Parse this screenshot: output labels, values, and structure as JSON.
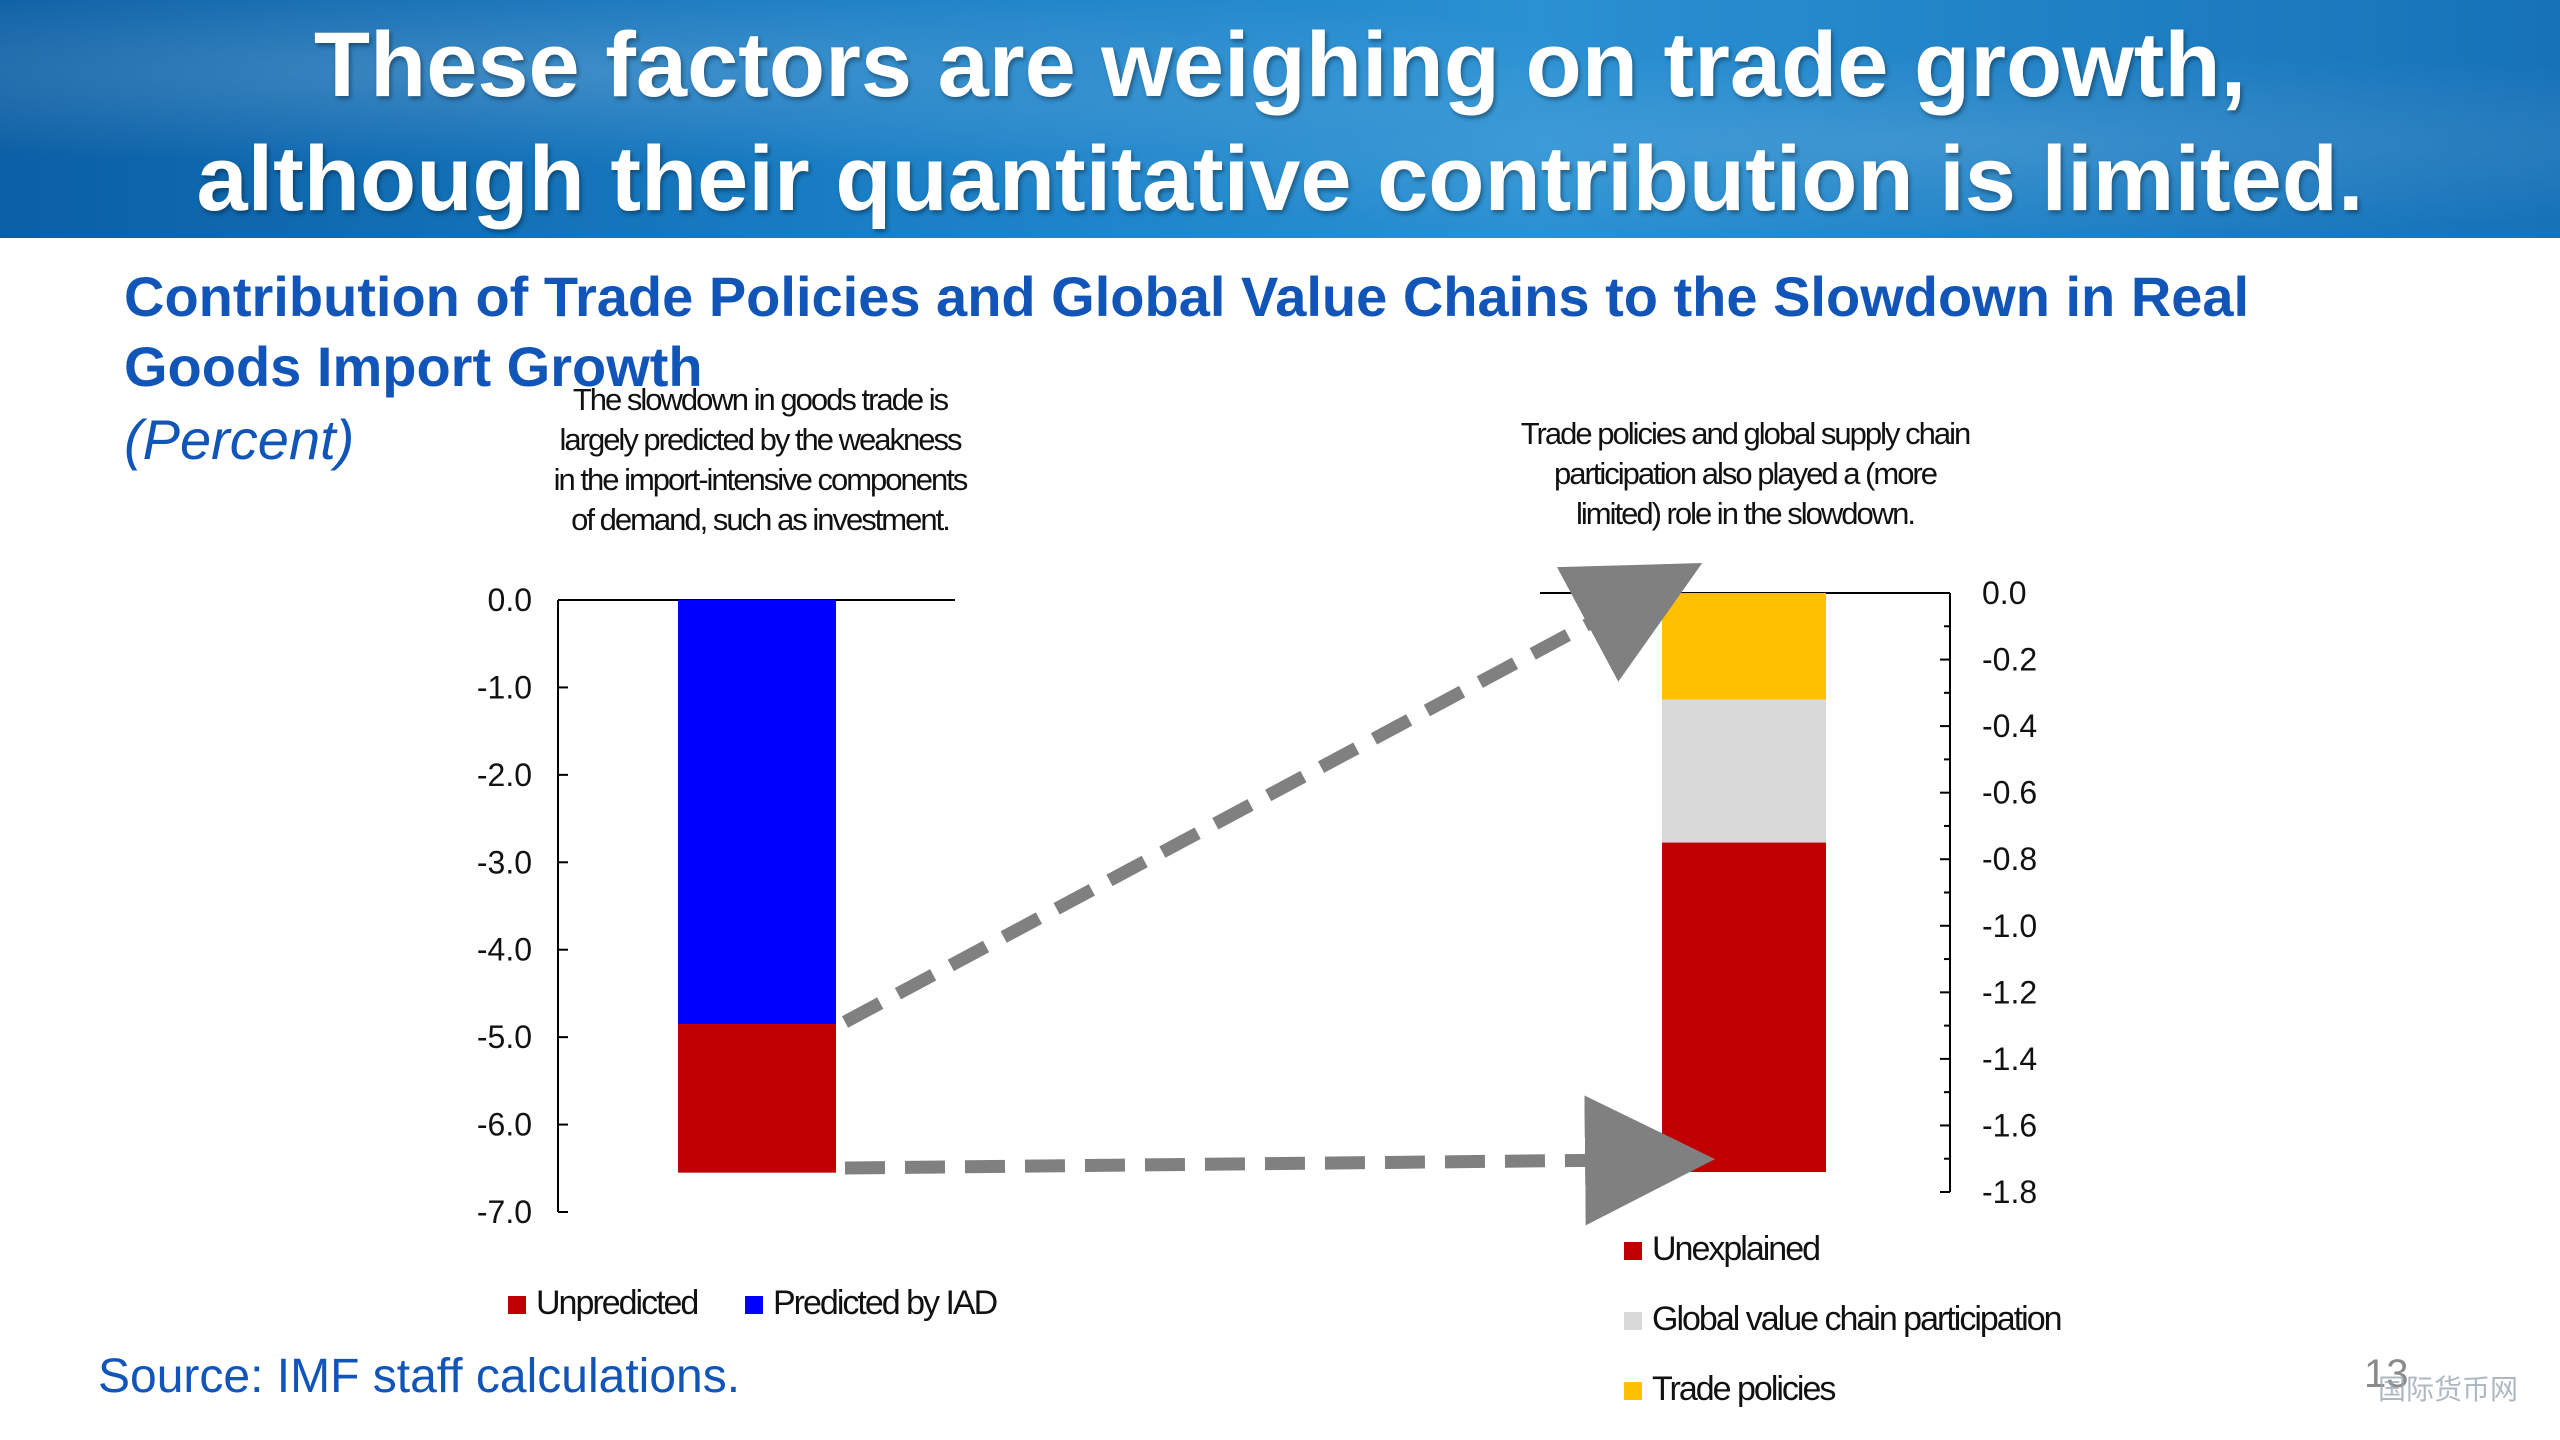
{
  "slide": {
    "headline_line1": "These factors are weighing on trade growth,",
    "headline_line2": "although their quantitative contribution is limited.",
    "chart_title": "Contribution of Trade Policies and Global Value Chains to the Slowdown in Real Goods Import Growth",
    "chart_subtitle": "(Percent)",
    "source": "Source: IMF staff calculations.",
    "page_number": "13",
    "watermark": "国际货币网"
  },
  "colors": {
    "banner": "#1a7fc6",
    "title_blue": "#1155b8",
    "unpredicted": "#c00000",
    "predicted": "#0000ff",
    "unexplained": "#c00000",
    "gvc": "#d9d9d9",
    "trade_policies": "#ffc000",
    "arrow": "#808080"
  },
  "chart_data": [
    {
      "type": "bar",
      "stacked": true,
      "annotation": "The slowdown in goods trade is largely predicted by the weakness in the import-intensive components of demand, such as investment.",
      "ylim": [
        -7.0,
        0.0
      ],
      "yticks": [
        "0.0",
        "-1.0",
        "-2.0",
        "-3.0",
        "-4.0",
        "-5.0",
        "-6.0",
        "-7.0"
      ],
      "series": [
        {
          "name": "Predicted by IAD",
          "value": -4.85,
          "color": "#0000ff"
        },
        {
          "name": "Unpredicted",
          "value": -1.7,
          "color": "#c00000"
        }
      ],
      "legend": [
        "Unpredicted",
        "Predicted by IAD"
      ],
      "legend_position": "bottom"
    },
    {
      "type": "bar",
      "stacked": true,
      "annotation": "Trade policies and global supply chain participation also played a (more limited) role in the slowdown.",
      "ylim": [
        -1.8,
        0.0
      ],
      "yticks": [
        "0.0",
        "-0.2",
        "-0.4",
        "-0.6",
        "-0.8",
        "-1.0",
        "-1.2",
        "-1.4",
        "-1.6",
        "-1.8"
      ],
      "series": [
        {
          "name": "Trade policies",
          "value": -0.32,
          "color": "#ffc000"
        },
        {
          "name": "Global value chain participation",
          "value": -0.43,
          "color": "#d9d9d9"
        },
        {
          "name": "Unexplained",
          "value": -0.99,
          "color": "#c00000"
        }
      ],
      "legend": [
        "Unexplained",
        "Global value chain participation",
        "Trade policies"
      ],
      "legend_position": "bottom"
    }
  ]
}
